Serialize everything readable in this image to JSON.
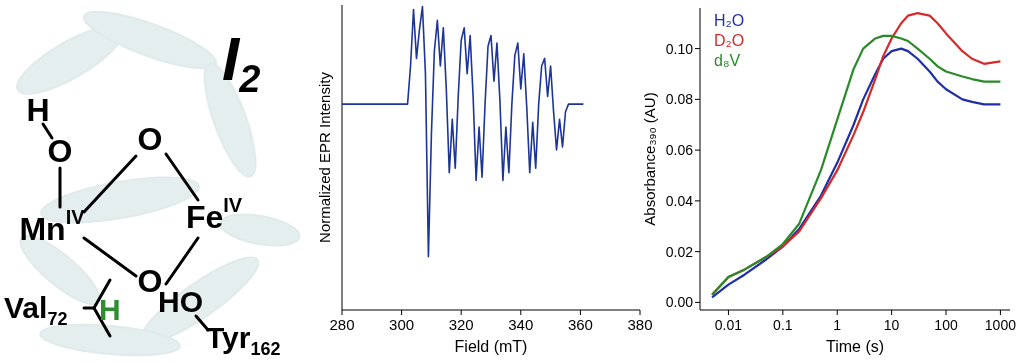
{
  "diagram": {
    "title": {
      "label": "I",
      "sub": "2"
    },
    "atoms": [
      {
        "label": "H"
      },
      {
        "label": "O"
      },
      {
        "label": "Mn",
        "sup": "IV"
      },
      {
        "label": "O"
      },
      {
        "label": "O"
      },
      {
        "label": "Fe",
        "sup": "IV"
      }
    ],
    "residues": [
      {
        "label": "Val",
        "sub": "72",
        "atom": "H",
        "color": "#2f8f2f"
      },
      {
        "label": "Tyr",
        "sub": "162",
        "group": "HO"
      }
    ]
  },
  "chart_data": [
    {
      "type": "line",
      "xlabel": "Field (mT)",
      "ylabel": "Normalized EPR Intensity",
      "color": "#1d3596",
      "x": [
        280,
        300,
        302,
        303,
        304,
        305,
        306,
        307,
        308,
        309,
        310,
        311,
        312,
        313,
        314,
        315,
        316,
        317,
        318,
        319,
        320,
        321,
        322,
        323,
        324,
        325,
        326,
        327,
        328,
        329,
        330,
        331,
        332,
        333,
        334,
        335,
        336,
        337,
        338,
        339,
        340,
        341,
        342,
        343,
        344,
        345,
        346,
        347,
        348,
        349,
        350,
        351,
        352,
        353,
        354,
        355,
        356,
        361
      ],
      "values": [
        0,
        0,
        0,
        0.25,
        0.62,
        0.3,
        0.49,
        0.64,
        0.2,
        -1.0,
        -0.2,
        0.35,
        0.55,
        0.25,
        0.5,
        0.1,
        -0.45,
        -0.1,
        -0.42,
        0.05,
        0.42,
        0.5,
        0.2,
        0.45,
        0.05,
        -0.5,
        -0.15,
        -0.48,
        0.0,
        0.38,
        0.45,
        0.15,
        0.4,
        0.02,
        -0.5,
        -0.15,
        -0.45,
        0.0,
        0.32,
        0.4,
        0.1,
        0.33,
        -0.02,
        -0.45,
        -0.12,
        -0.42,
        0.0,
        0.25,
        0.3,
        0.05,
        0.25,
        -0.05,
        -0.3,
        -0.1,
        -0.28,
        -0.05,
        0,
        0
      ],
      "xlim": [
        280,
        380
      ],
      "xticks": [
        280,
        300,
        320,
        340,
        360,
        380
      ],
      "ylim": [
        -1.35,
        0.65
      ],
      "grid": false,
      "tick_labels": "x"
    },
    {
      "type": "line",
      "xlabel": "Time (s)",
      "ylabel": "Absorbance₃₉₀ (AU)",
      "log": "x",
      "x": [
        0.005,
        0.01,
        0.02,
        0.05,
        0.1,
        0.2,
        0.5,
        1,
        2,
        3,
        5,
        7,
        10,
        15,
        20,
        30,
        50,
        70,
        100,
        200,
        300,
        500,
        1000
      ],
      "series": [
        {
          "name": "H₂O",
          "color": "#1f2fa8",
          "values": [
            0.002,
            0.007,
            0.011,
            0.017,
            0.022,
            0.029,
            0.042,
            0.055,
            0.07,
            0.08,
            0.09,
            0.096,
            0.099,
            0.1,
            0.099,
            0.096,
            0.091,
            0.087,
            0.084,
            0.08,
            0.079,
            0.078,
            0.078
          ]
        },
        {
          "name": "D₂O",
          "color": "#d62a2a",
          "values": [
            0.003,
            0.01,
            0.013,
            0.018,
            0.022,
            0.028,
            0.041,
            0.052,
            0.066,
            0.075,
            0.088,
            0.097,
            0.104,
            0.11,
            0.113,
            0.114,
            0.113,
            0.11,
            0.106,
            0.099,
            0.096,
            0.094,
            0.095
          ]
        },
        {
          "name": "d₈V",
          "color": "#2a8a2a",
          "values": [
            0.003,
            0.01,
            0.013,
            0.018,
            0.023,
            0.031,
            0.052,
            0.072,
            0.092,
            0.1,
            0.104,
            0.105,
            0.105,
            0.104,
            0.103,
            0.1,
            0.096,
            0.093,
            0.091,
            0.089,
            0.088,
            0.087,
            0.087
          ]
        }
      ],
      "xlim": [
        0.003,
        1500
      ],
      "xticks": [
        0.01,
        0.1,
        1,
        10,
        100,
        1000
      ],
      "ylim": [
        -0.003,
        0.116
      ],
      "yticks": [
        {
          "value": 0,
          "label": "0.00"
        },
        {
          "value": 0.02,
          "label": "0.02"
        },
        {
          "value": 0.04,
          "label": "0.04"
        },
        {
          "value": 0.06,
          "label": "0.06"
        },
        {
          "value": 0.08,
          "label": "0.08"
        },
        {
          "value": 0.1,
          "label": "0.10"
        }
      ],
      "grid": false,
      "legend": "upper left"
    }
  ]
}
